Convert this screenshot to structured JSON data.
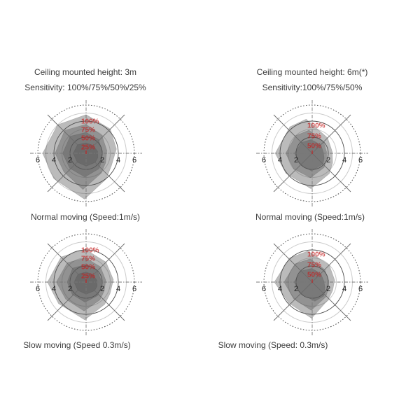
{
  "colors": {
    "ring_fill": "rgba(85,85,85,0.40)",
    "ring_edge": "rgba(70,70,70,0.25)",
    "grid_dark": "#4d4d4d",
    "grid_light": "#cbcbcb",
    "axis": "#787878",
    "diagonal": "#6b6b6b",
    "label_red": "#c42222",
    "tick_text": "#1c1c1c",
    "heading_text": "#3c3c3c"
  },
  "chart_data": [
    {
      "id": "height-3m-normal",
      "type": "radar",
      "polar_units": "meters",
      "title_lines": [
        "Ceiling mounted height: 3m",
        "Sensitivity: 100%/75%/50%/25%"
      ],
      "caption": "Normal moving (Speed:1m/s)",
      "axis": {
        "r_max": 6,
        "tick_values": [
          2,
          4,
          6
        ],
        "tick_labels": [
          "6",
          "4",
          "2",
          "2",
          "4",
          "6"
        ],
        "grid_circles_light": [
          3,
          5
        ],
        "grid_circles_dark": [
          2,
          4
        ],
        "outer_dotted_circle": 6
      },
      "ring_labels": [
        "100%",
        "75%",
        "50%",
        "25%"
      ],
      "series": [
        {
          "name": "100%",
          "points_deg_m": [
            [
              8,
              3.8
            ],
            [
              45,
              4.25
            ],
            [
              90,
              4.8
            ],
            [
              135,
              5.0
            ],
            [
              180,
              5.4
            ],
            [
              218,
              5.1
            ],
            [
              268,
              5.7
            ],
            [
              308,
              4.05
            ],
            [
              334,
              3.5
            ]
          ]
        },
        {
          "name": "75%",
          "points_deg_m": [
            [
              8,
              2.6
            ],
            [
              48,
              2.95
            ],
            [
              90,
              3.6
            ],
            [
              133,
              3.9
            ],
            [
              180,
              3.85
            ],
            [
              220,
              3.6
            ],
            [
              265,
              4.5
            ],
            [
              307,
              3.1
            ],
            [
              334,
              2.7
            ]
          ]
        },
        {
          "name": "50%",
          "points_deg_m": [
            [
              8,
              2.05
            ],
            [
              48,
              2.3
            ],
            [
              90,
              2.6
            ],
            [
              133,
              2.9
            ],
            [
              180,
              2.9
            ],
            [
              222,
              2.75
            ],
            [
              267,
              2.95
            ],
            [
              310,
              2.5
            ],
            [
              334,
              2.15
            ]
          ]
        },
        {
          "name": "25%",
          "points_deg_m": [
            [
              10,
              1.45
            ],
            [
              50,
              1.3
            ],
            [
              90,
              1.3
            ],
            [
              135,
              1.5
            ],
            [
              180,
              1.6
            ],
            [
              225,
              1.55
            ],
            [
              270,
              1.6
            ],
            [
              315,
              1.6
            ],
            [
              340,
              1.55
            ]
          ]
        }
      ]
    },
    {
      "id": "height-6m-normal",
      "type": "radar",
      "polar_units": "meters",
      "title_lines": [
        "Ceiling mounted height: 6m(*)",
        "Sensitivity:100%/75%/50%"
      ],
      "caption": "Normal moving (Speed:1m/s)",
      "axis": {
        "r_max": 6,
        "tick_values": [
          2,
          4,
          6
        ],
        "tick_labels": [
          "6",
          "4",
          "2",
          "2",
          "4",
          "6"
        ],
        "grid_circles_light": [
          3,
          5
        ],
        "grid_circles_dark": [
          2,
          4
        ],
        "outer_dotted_circle": 6
      },
      "ring_labels": [
        "100%",
        "75%",
        "50%"
      ],
      "series": [
        {
          "name": "100%",
          "points_deg_m": [
            [
              5,
              2.5
            ],
            [
              45,
              2.7
            ],
            [
              100,
              4.3
            ],
            [
              130,
              4.3
            ],
            [
              180,
              4.6
            ],
            [
              217,
              4.1
            ],
            [
              268,
              4.4
            ],
            [
              310,
              3.3
            ],
            [
              335,
              2.8
            ]
          ]
        },
        {
          "name": "75%",
          "points_deg_m": [
            [
              5,
              1.8
            ],
            [
              45,
              2.0
            ],
            [
              98,
              2.9
            ],
            [
              133,
              3.0
            ],
            [
              180,
              3.3
            ],
            [
              220,
              3.0
            ],
            [
              266,
              3.05
            ],
            [
              310,
              2.3
            ],
            [
              335,
              1.95
            ]
          ]
        },
        {
          "name": "50%",
          "points_deg_m": [
            [
              5,
              1.4
            ],
            [
              45,
              1.5
            ],
            [
              95,
              1.7
            ],
            [
              135,
              1.9
            ],
            [
              180,
              2.2
            ],
            [
              225,
              2.0
            ],
            [
              268,
              2.2
            ],
            [
              315,
              1.9
            ],
            [
              338,
              1.6
            ]
          ]
        }
      ]
    },
    {
      "id": "height-3m-slow",
      "type": "radar",
      "polar_units": "meters",
      "title_lines": null,
      "caption": "Slow moving (Speed 0.3m/s)",
      "axis": {
        "r_max": 6,
        "tick_values": [
          2,
          4,
          6
        ],
        "tick_labels": [
          "6",
          "4",
          "2",
          "2",
          "4",
          "6"
        ],
        "grid_circles_light": [
          3,
          5
        ],
        "grid_circles_dark": [
          2,
          4
        ],
        "outer_dotted_circle": 6
      },
      "ring_labels": [
        "100%",
        "75%",
        "50%",
        "25%"
      ],
      "series": [
        {
          "name": "100%",
          "points_deg_m": [
            [
              5,
              3.4
            ],
            [
              45,
              3.5
            ],
            [
              92,
              4.1
            ],
            [
              135,
              4.4
            ],
            [
              180,
              4.8
            ],
            [
              218,
              4.35
            ],
            [
              268,
              4.7
            ],
            [
              310,
              3.6
            ],
            [
              334,
              3.3
            ]
          ]
        },
        {
          "name": "75%",
          "points_deg_m": [
            [
              5,
              2.45
            ],
            [
              47,
              2.6
            ],
            [
              91,
              3.0
            ],
            [
              134,
              3.35
            ],
            [
              180,
              3.7
            ],
            [
              220,
              3.3
            ],
            [
              266,
              3.6
            ],
            [
              308,
              2.8
            ],
            [
              334,
              2.5
            ]
          ]
        },
        {
          "name": "50%",
          "points_deg_m": [
            [
              5,
              1.9
            ],
            [
              47,
              2.0
            ],
            [
              90,
              2.2
            ],
            [
              134,
              2.4
            ],
            [
              180,
              2.35
            ],
            [
              222,
              2.3
            ],
            [
              267,
              2.5
            ],
            [
              310,
              2.2
            ],
            [
              334,
              2.0
            ]
          ]
        },
        {
          "name": "25%",
          "points_deg_m": [
            [
              10,
              1.35
            ],
            [
              50,
              1.25
            ],
            [
              90,
              1.25
            ],
            [
              135,
              1.4
            ],
            [
              180,
              1.5
            ],
            [
              225,
              1.45
            ],
            [
              270,
              1.5
            ],
            [
              315,
              1.5
            ],
            [
              340,
              1.45
            ]
          ]
        }
      ]
    },
    {
      "id": "height-6m-slow",
      "type": "radar",
      "polar_units": "meters",
      "title_lines": null,
      "caption": "Slow moving (Speed: 0.3m/s)",
      "axis": {
        "r_max": 6,
        "tick_values": [
          2,
          4,
          6
        ],
        "tick_labels": [
          "6",
          "4",
          "2",
          "2",
          "4",
          "6"
        ],
        "grid_circles_light": [
          3,
          5
        ],
        "grid_circles_dark": [
          2,
          4
        ],
        "outer_dotted_circle": 6
      },
      "ring_labels": [
        "100%",
        "75%",
        "50%"
      ],
      "series": [
        {
          "name": "100%",
          "points_deg_m": [
            [
              5,
              2.8
            ],
            [
              45,
              3.0
            ],
            [
              98,
              3.9
            ],
            [
              133,
              4.1
            ],
            [
              180,
              4.7
            ],
            [
              222,
              3.9
            ],
            [
              269,
              4.5
            ],
            [
              313,
              2.95
            ],
            [
              338,
              2.75
            ]
          ]
        },
        {
          "name": "75%",
          "points_deg_m": [
            [
              5,
              2.05
            ],
            [
              45,
              2.2
            ],
            [
              95,
              2.9
            ],
            [
              133,
              3.1
            ],
            [
              180,
              3.5
            ],
            [
              222,
              3.1
            ],
            [
              268,
              3.5
            ],
            [
              312,
              2.5
            ],
            [
              336,
              2.2
            ]
          ]
        },
        {
          "name": "50%",
          "points_deg_m": [
            [
              5,
              1.45
            ],
            [
              45,
              1.5
            ],
            [
              92,
              1.7
            ],
            [
              135,
              1.95
            ],
            [
              180,
              2.25
            ],
            [
              225,
              2.0
            ],
            [
              278,
              2.4
            ],
            [
              310,
              2.25
            ],
            [
              338,
              1.7
            ]
          ]
        }
      ]
    }
  ]
}
